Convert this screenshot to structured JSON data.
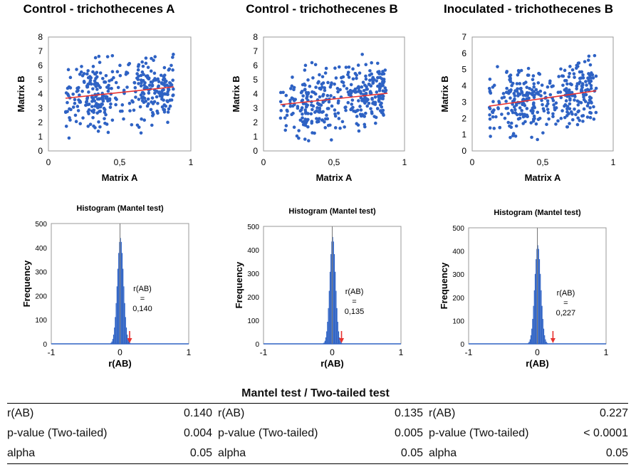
{
  "panels": [
    {
      "title": "Control - trichothecenes A",
      "hist_title": "Histogram (Mantel test)",
      "r_label": "r(AB)",
      "r_eq": "=",
      "r_value": "0,140",
      "r_num": 0.14
    },
    {
      "title": "Control - trichothecenes B",
      "hist_title": "Histogram (Mantel test)",
      "r_label": "r(AB)",
      "r_eq": "=",
      "r_value": "0,135",
      "r_num": 0.135
    },
    {
      "title": "Inoculated - trichothecenes B",
      "hist_title": "Histogram (Mantel test)",
      "r_label": "r(AB)",
      "r_eq": "=",
      "r_value": "0,227",
      "r_num": 0.227
    }
  ],
  "chart_data": [
    {
      "type": "scatter",
      "title": "Control - trichothecenes A",
      "xlabel": "Matrix A",
      "ylabel": "Matrix B",
      "xlim": [
        0,
        1
      ],
      "ylim": [
        0,
        8
      ],
      "xticks": [
        "0",
        "0,5",
        "1"
      ],
      "yticks": [
        "0",
        "1",
        "2",
        "3",
        "4",
        "5",
        "6",
        "7",
        "8"
      ],
      "trend": {
        "x": [
          0.12,
          0.88
        ],
        "y": [
          3.7,
          4.5
        ]
      },
      "point_color": "#2e62c4",
      "trend_color": "#e8312f"
    },
    {
      "type": "scatter",
      "title": "Control - trichothecenes B",
      "xlabel": "Matrix A",
      "ylabel": "Matrix B",
      "xlim": [
        0,
        1
      ],
      "ylim": [
        0,
        8
      ],
      "xticks": [
        "0",
        "0,5",
        "1"
      ],
      "yticks": [
        "0",
        "1",
        "2",
        "3",
        "4",
        "5",
        "6",
        "7",
        "8"
      ],
      "trend": {
        "x": [
          0.12,
          0.88
        ],
        "y": [
          3.25,
          4.05
        ]
      },
      "point_color": "#2e62c4",
      "trend_color": "#e8312f"
    },
    {
      "type": "scatter",
      "title": "Inoculated - trichothecenes B",
      "xlabel": "Matrix A",
      "ylabel": "Matrix B",
      "xlim": [
        0,
        1
      ],
      "ylim": [
        0,
        7
      ],
      "xticks": [
        "0",
        "0,5",
        "1"
      ],
      "yticks": [
        "0",
        "1",
        "2",
        "3",
        "4",
        "5",
        "6",
        "7"
      ],
      "trend": {
        "x": [
          0.12,
          0.88
        ],
        "y": [
          2.75,
          3.7
        ]
      },
      "point_color": "#2e62c4",
      "trend_color": "#e8312f"
    },
    {
      "type": "histogram",
      "title": "Histogram (Mantel test)",
      "xlabel": "r(AB)",
      "ylabel": "Frequency",
      "xlim": [
        -1,
        1
      ],
      "ylim": [
        0,
        500
      ],
      "xticks": [
        "-1",
        "0",
        "1"
      ],
      "yticks": [
        "0",
        "100",
        "200",
        "300",
        "400",
        "500"
      ],
      "peak": 440,
      "spread": 0.045,
      "observed_r": 0.14
    },
    {
      "type": "histogram",
      "title": "Histogram (Mantel test)",
      "xlabel": "r(AB)",
      "ylabel": "Frequency",
      "xlim": [
        -1,
        1
      ],
      "ylim": [
        0,
        500
      ],
      "xticks": [
        "-1",
        "0",
        "1"
      ],
      "yticks": [
        "0",
        "100",
        "200",
        "300",
        "400",
        "500"
      ],
      "peak": 455,
      "spread": 0.042,
      "observed_r": 0.135
    },
    {
      "type": "histogram",
      "title": "Histogram (Mantel test)",
      "xlabel": "r(AB)",
      "ylabel": "Frequency",
      "xlim": [
        -1,
        1
      ],
      "ylim": [
        0,
        500
      ],
      "xticks": [
        "-1",
        "0",
        "1"
      ],
      "yticks": [
        "0",
        "100",
        "200",
        "300",
        "400",
        "500"
      ],
      "peak": 425,
      "spread": 0.045,
      "observed_r": 0.227
    }
  ],
  "table": {
    "title": "Mantel test / Two-tailed test",
    "rows": [
      {
        "label": "r(AB)",
        "values": [
          "0.140",
          "0.135",
          "0.227"
        ]
      },
      {
        "label": "p-value (Two-tailed)",
        "values": [
          "0.004",
          "0.005",
          "< 0.0001"
        ]
      },
      {
        "label": "alpha",
        "values": [
          "0.05",
          "0.05",
          "0.05"
        ]
      }
    ]
  }
}
